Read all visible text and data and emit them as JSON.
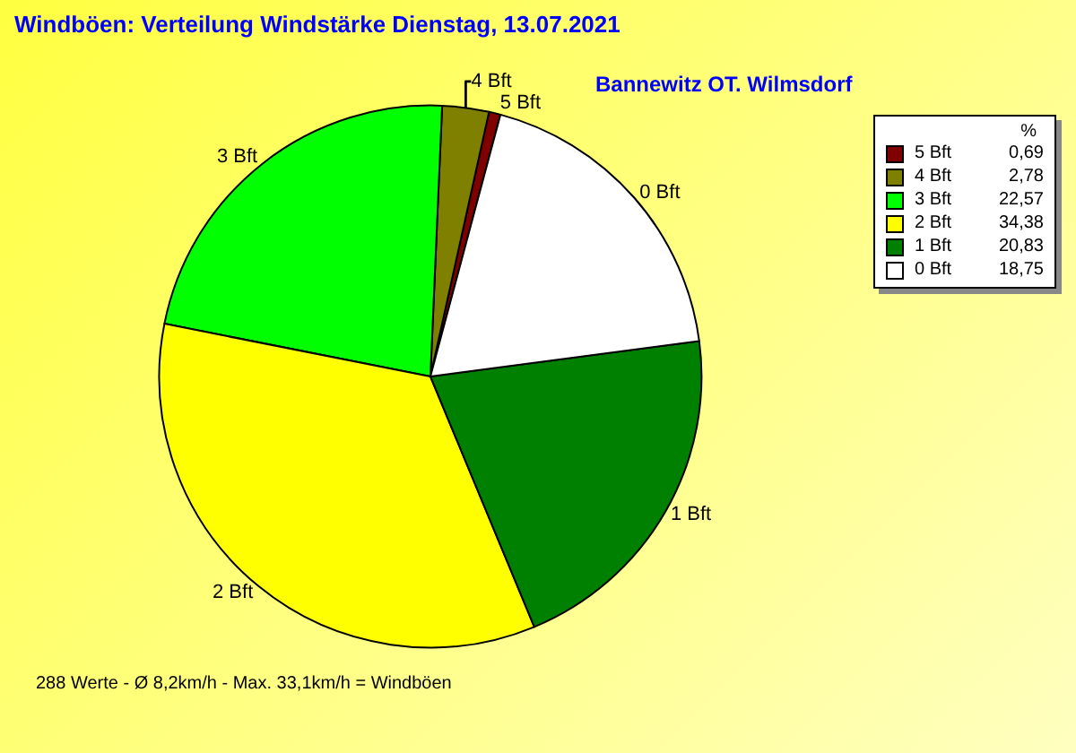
{
  "chart_data": {
    "type": "pie",
    "title": "Windböen: Verteilung Windstärke  Dienstag, 13.07.2021",
    "subtitle": "Bannewitz OT. Wilmsdorf",
    "legend_title": "%",
    "categories": [
      "5 Bft",
      "4 Bft",
      "3 Bft",
      "2 Bft",
      "1 Bft",
      "0 Bft"
    ],
    "values": [
      0.69,
      2.78,
      22.57,
      34.38,
      20.83,
      18.75
    ],
    "value_labels": [
      "0,69",
      "2,78",
      "22,57",
      "34,38",
      "20,83",
      "18,75"
    ],
    "colors": [
      "#800000",
      "#808000",
      "#00ff00",
      "#ffff00",
      "#008000",
      "#ffffff"
    ],
    "legend": "top right",
    "annotations": [
      "288 Werte   -   Ø 8,2km/h  -  Max. 33,1km/h = Windböen"
    ]
  }
}
